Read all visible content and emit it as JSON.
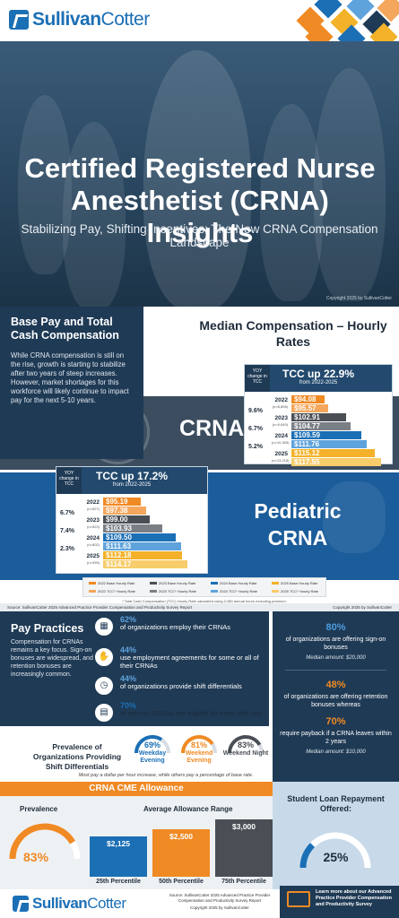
{
  "brand": {
    "name_a": "Sullivan",
    "name_b": "Cotter"
  },
  "hero": {
    "title": "Certified Registered Nurse Anesthetist (CRNA) Insights",
    "subtitle": "Stabilizing Pay, Shifting Incentives: The New CRNA Compensation Landscape",
    "copyright": "Copyright 2025 by SullivanCotter"
  },
  "base_pay": {
    "title": "Base Pay and Total Cash Compensation",
    "body": "While CRNA compensation is still on the rise, growth is starting to stabilize after two years of steep increases. However, market shortages for this workforce will likely continue to impact pay for the next 5-10 years.",
    "chart_heading": "Median Compensation – Hourly Rates",
    "crna_label": "CRNA",
    "ped_label": "Pediatric CRNA",
    "yoy_label": "YOY change in TCC",
    "legend": [
      "2022 Base Hourly Rate",
      "2022 TCC* Hourly Rate",
      "2023 Base Hourly Rate",
      "2023 TCC* Hourly Rate",
      "2024 Base Hourly Rate",
      "2024 TCC* Hourly Rate",
      "2025 Base Hourly Rate",
      "2025 TCC* Hourly Rate"
    ],
    "footnote": "* Total Cash Compensation (TCC) Hourly Rate calculated using 2,080 annual hours excluding premium.",
    "source": "Source: SullivanCotter 2025 Advanced Practice Provider Compensation and Productivity Survey Report",
    "copyright": "Copyright 2025 by SullivanCotter"
  },
  "chart_data": [
    {
      "type": "bar",
      "title": "TCC up 22.9%",
      "subtitle": "from 2022-2025",
      "categories": [
        "2022",
        "2023",
        "2024",
        "2025"
      ],
      "n": [
        "(n=8,898)",
        "(n=9,649)",
        "(n=10,305)",
        "(n=13,218)"
      ],
      "yoy": [
        "",
        "9.6%",
        "6.7%",
        "5.2%"
      ],
      "series": [
        {
          "name": "Base Hourly Rate",
          "values": [
            94.08,
            102.91,
            109.59,
            115.12
          ],
          "labels": [
            "$94.08",
            "$102.91",
            "$109.59",
            "$115.12"
          ]
        },
        {
          "name": "TCC* Hourly Rate",
          "values": [
            95.57,
            104.77,
            111.76,
            117.55
          ],
          "labels": [
            "$95.57",
            "$104.77",
            "$111.76",
            "$117.55"
          ]
        }
      ]
    },
    {
      "type": "bar",
      "title": "TCC up 17.2%",
      "subtitle": "from 2022-2025",
      "categories": [
        "2022",
        "2023",
        "2024",
        "2025"
      ],
      "n": [
        "(n=527)",
        "(n=523)",
        "(n=802)",
        "(n=939)"
      ],
      "yoy": [
        "",
        "6.7%",
        "7.4%",
        "2.3%"
      ],
      "series": [
        {
          "name": "Base Hourly Rate",
          "values": [
            95.19,
            99.0,
            109.5,
            112.18
          ],
          "labels": [
            "$95.19",
            "$99.00",
            "$109.50",
            "$112.18"
          ]
        },
        {
          "name": "TCC* Hourly Rate",
          "values": [
            97.38,
            103.93,
            111.63,
            114.17
          ],
          "labels": [
            "$97.38",
            "$103.93",
            "$111.63",
            "$114.17"
          ]
        }
      ]
    }
  ],
  "colors": {
    "y2022": "#f08a24",
    "y2022t": "#f4a75c",
    "y2023": "#4a4f55",
    "y2023t": "#7a7f86",
    "y2024": "#1b6fb5",
    "y2024t": "#5fa3dc",
    "y2025": "#f3b229",
    "y2025t": "#f7cc6b"
  },
  "pay_practices": {
    "title": "Pay Practices",
    "body": "Compensation for CRNAs remains a key focus. Sign-on bonuses are widespread, and retention bonuses are increasingly common.",
    "stats": [
      {
        "pct": "62%",
        "text": "of organizations employ their CRNAs"
      },
      {
        "pct": "44%",
        "text": "use employment agreements for some or all of their CRNAs"
      },
      {
        "pct": "44%",
        "text": "of organizations provide shift differentials"
      },
      {
        "pct": "70%",
        "text": "of exempt CRNAs are eligible for extra shift pay"
      }
    ],
    "right": [
      {
        "pct": "80%",
        "text": "of organizations are offering sign-on bonuses",
        "median": "Median amount: $20,000"
      },
      {
        "pct": "48%",
        "text": "of organizations are offering retention bonuses whereas"
      },
      {
        "pct": "70%",
        "text": "require payback if a CRNA leaves within 2 years",
        "median": "Median amount: $10,000"
      }
    ],
    "shift_title": "Prevalence of Organizations Providing Shift Differentials",
    "shifts": [
      {
        "pct": "69%",
        "value": 69,
        "name": "Weekday Evening"
      },
      {
        "pct": "81%",
        "value": 81,
        "name": "Weekend Evening"
      },
      {
        "pct": "83%",
        "value": 83,
        "name": "Weekend Night"
      }
    ],
    "shift_note": "Most pay a dollar per hour increase, while others pay a percentage of base rate."
  },
  "cme": {
    "title": "CRNA CME Allowance",
    "prevalence_label": "Prevalence",
    "prevalence_value": "83%",
    "prevalence_num": 83,
    "range_label": "Average Allowance Range",
    "bars": [
      {
        "value": 2125,
        "label": "$2,125",
        "caption": "25th Percentile"
      },
      {
        "value": 2500,
        "label": "$2,500",
        "caption": "50th Percentile"
      },
      {
        "value": 3000,
        "label": "$3,000",
        "caption": "75th Percentile"
      }
    ]
  },
  "student_loan": {
    "title": "Student Loan Repayment Offered:",
    "value": "25%",
    "num": 25
  },
  "footer": {
    "source": "Source: SullivanCotter 2025 Advanced Practice Provider Compensation and Productivity Survey Report",
    "copyright": "Copyright 2025 by SullivanCotter",
    "cta": "Learn more about our Advanced Practice Provider Compensation and Productivity Survey"
  }
}
